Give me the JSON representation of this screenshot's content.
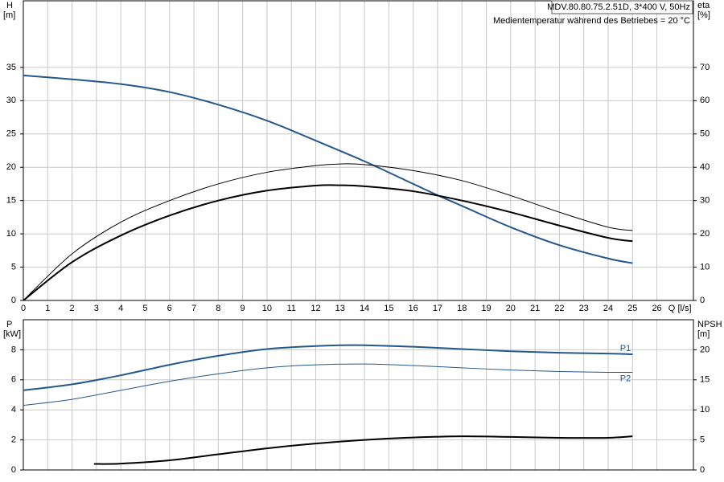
{
  "chart_data": [
    {
      "type": "line",
      "ylabel": "H",
      "yunit": "[m]",
      "y2label": "eta",
      "y2unit": "[%]",
      "xlabel": "Q",
      "xunit": "[l/s]",
      "header": "MDV.80.80.75.2.51D, 3*400 V, 50Hz",
      "note": "Medientemperatur während des Betriebes = 20 °C",
      "xlim": [
        0,
        27.5
      ],
      "xticks": [
        0,
        1,
        2,
        3,
        4,
        5,
        6,
        7,
        8,
        9,
        10,
        11,
        12,
        13,
        14,
        15,
        16,
        17,
        18,
        19,
        20,
        21,
        22,
        23,
        24,
        25,
        26
      ],
      "ylim": [
        0,
        45
      ],
      "yticks": [
        0,
        5,
        10,
        15,
        20,
        25,
        30,
        35
      ],
      "y2lim": [
        0,
        90
      ],
      "y2ticks": [
        0,
        10,
        20,
        30,
        40,
        50,
        60,
        70
      ],
      "grid": true,
      "series": [
        {
          "color": "#24578c",
          "width": 2,
          "axis": "y",
          "x": [
            0,
            2,
            4,
            6,
            8,
            10,
            12,
            14,
            16,
            17,
            18,
            20,
            22,
            24,
            25
          ],
          "values": [
            33.8,
            33.2,
            32.5,
            31.3,
            29.4,
            27.0,
            24.0,
            20.9,
            17.5,
            15.8,
            14.2,
            11.0,
            8.3,
            6.3,
            5.6
          ]
        },
        {
          "color": "#000000",
          "width": 1,
          "axis": "y2",
          "x": [
            0,
            2,
            4,
            6,
            8,
            10,
            12,
            13,
            14,
            16,
            18,
            20,
            22,
            24,
            25
          ],
          "values": [
            0,
            14,
            23.5,
            30,
            35,
            38.5,
            40.5,
            41,
            40.8,
            39,
            36,
            31.5,
            26.5,
            22,
            21
          ]
        },
        {
          "color": "#000000",
          "width": 2,
          "axis": "y2",
          "x": [
            0,
            2,
            4,
            6,
            8,
            10,
            12,
            13,
            14,
            16,
            18,
            20,
            22,
            24,
            25
          ],
          "values": [
            0,
            11.5,
            19.5,
            25.5,
            30,
            33,
            34.5,
            34.6,
            34.3,
            32.8,
            30,
            26.5,
            22.5,
            18.8,
            17.8
          ]
        }
      ]
    },
    {
      "type": "line",
      "ylabel": "P",
      "yunit": "[kW]",
      "y2label": "NPSH",
      "y2unit": "[m]",
      "xlim": [
        0,
        27.5
      ],
      "ylim": [
        0,
        10
      ],
      "yticks": [
        0,
        2,
        4,
        6,
        8
      ],
      "y2lim": [
        0,
        25
      ],
      "y2ticks": [
        0,
        5,
        10,
        15,
        20
      ],
      "grid": true,
      "series": [
        {
          "name": "P1",
          "color": "#24578c",
          "width": 2,
          "axis": "y",
          "x": [
            0,
            2,
            4,
            6,
            8,
            10,
            12,
            13,
            14,
            16,
            18,
            20,
            22,
            24,
            25
          ],
          "values": [
            5.3,
            5.7,
            6.3,
            7.0,
            7.6,
            8.05,
            8.25,
            8.3,
            8.3,
            8.2,
            8.05,
            7.9,
            7.8,
            7.75,
            7.7
          ]
        },
        {
          "name": "P2",
          "color": "#24578c",
          "width": 1,
          "axis": "y",
          "x": [
            0,
            2,
            4,
            6,
            8,
            10,
            12,
            14,
            16,
            18,
            20,
            22,
            24,
            25
          ],
          "values": [
            4.3,
            4.7,
            5.3,
            5.9,
            6.4,
            6.8,
            7.0,
            7.05,
            6.95,
            6.8,
            6.65,
            6.55,
            6.5,
            6.5
          ]
        },
        {
          "color": "#000000",
          "width": 2,
          "axis": "y2",
          "x": [
            2.9,
            4,
            6,
            8,
            10,
            12,
            14,
            16,
            18,
            20,
            22,
            24,
            25
          ],
          "values": [
            1.0,
            1.05,
            1.6,
            2.6,
            3.6,
            4.4,
            5.0,
            5.4,
            5.6,
            5.5,
            5.35,
            5.35,
            5.6
          ]
        }
      ]
    }
  ]
}
